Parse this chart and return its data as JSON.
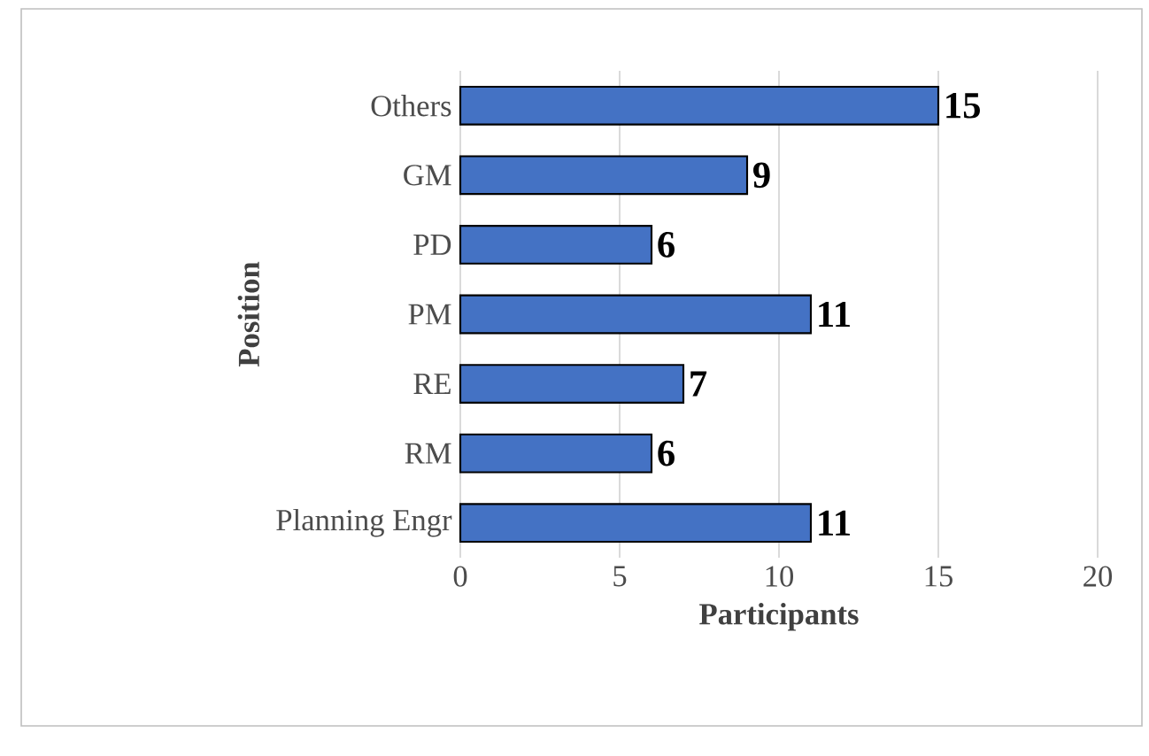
{
  "chart_data": {
    "type": "bar",
    "orientation": "horizontal",
    "categories": [
      "Others",
      "GM",
      "PD",
      "PM",
      "RE",
      "RM",
      "Planning Engr"
    ],
    "values": [
      15,
      9,
      6,
      11,
      7,
      6,
      11
    ],
    "color": "#4472c4",
    "xlim": [
      0,
      20
    ],
    "xticks": [
      0,
      5,
      10,
      15,
      20
    ],
    "grid": "x",
    "data_labels": true,
    "xlabel": "Participants",
    "ylabel": "Position"
  }
}
